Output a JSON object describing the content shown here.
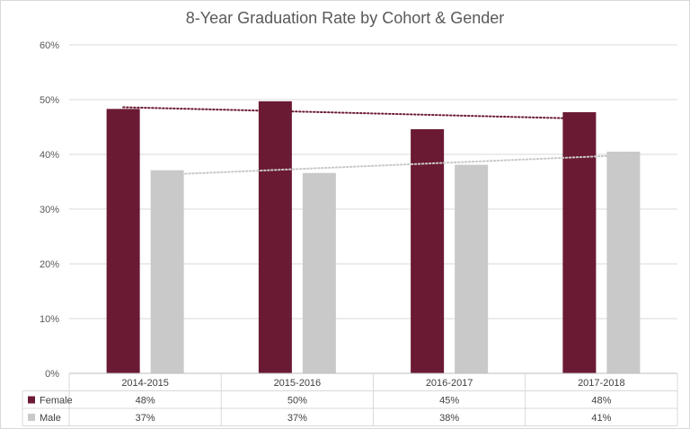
{
  "chart_data": {
    "type": "bar",
    "title": "8-Year Graduation Rate by Cohort & Gender",
    "categories": [
      "2014-2015",
      "2015-2016",
      "2016-2017",
      "2017-2018"
    ],
    "series": [
      {
        "name": "Female",
        "values": [
          48.3,
          49.7,
          44.6,
          47.7
        ],
        "labels": [
          "48%",
          "50%",
          "45%",
          "48%"
        ],
        "color": "#6b1a33"
      },
      {
        "name": "Male",
        "values": [
          37.1,
          36.6,
          38.1,
          40.5
        ],
        "labels": [
          "37%",
          "37%",
          "38%",
          "41%"
        ],
        "color": "#c9c9c9"
      }
    ],
    "trendlines": [
      {
        "series": "Female",
        "type": "linear",
        "style": "dotted",
        "color": "#6b1a33"
      },
      {
        "series": "Male",
        "type": "linear",
        "style": "dotted",
        "color": "#c9c9c9"
      }
    ],
    "ylim": [
      0,
      60
    ],
    "yticks": [
      0,
      10,
      20,
      30,
      40,
      50,
      60
    ],
    "ytick_labels": [
      "0%",
      "10%",
      "20%",
      "30%",
      "40%",
      "50%",
      "60%"
    ],
    "grid": true,
    "legend": "data-table"
  }
}
